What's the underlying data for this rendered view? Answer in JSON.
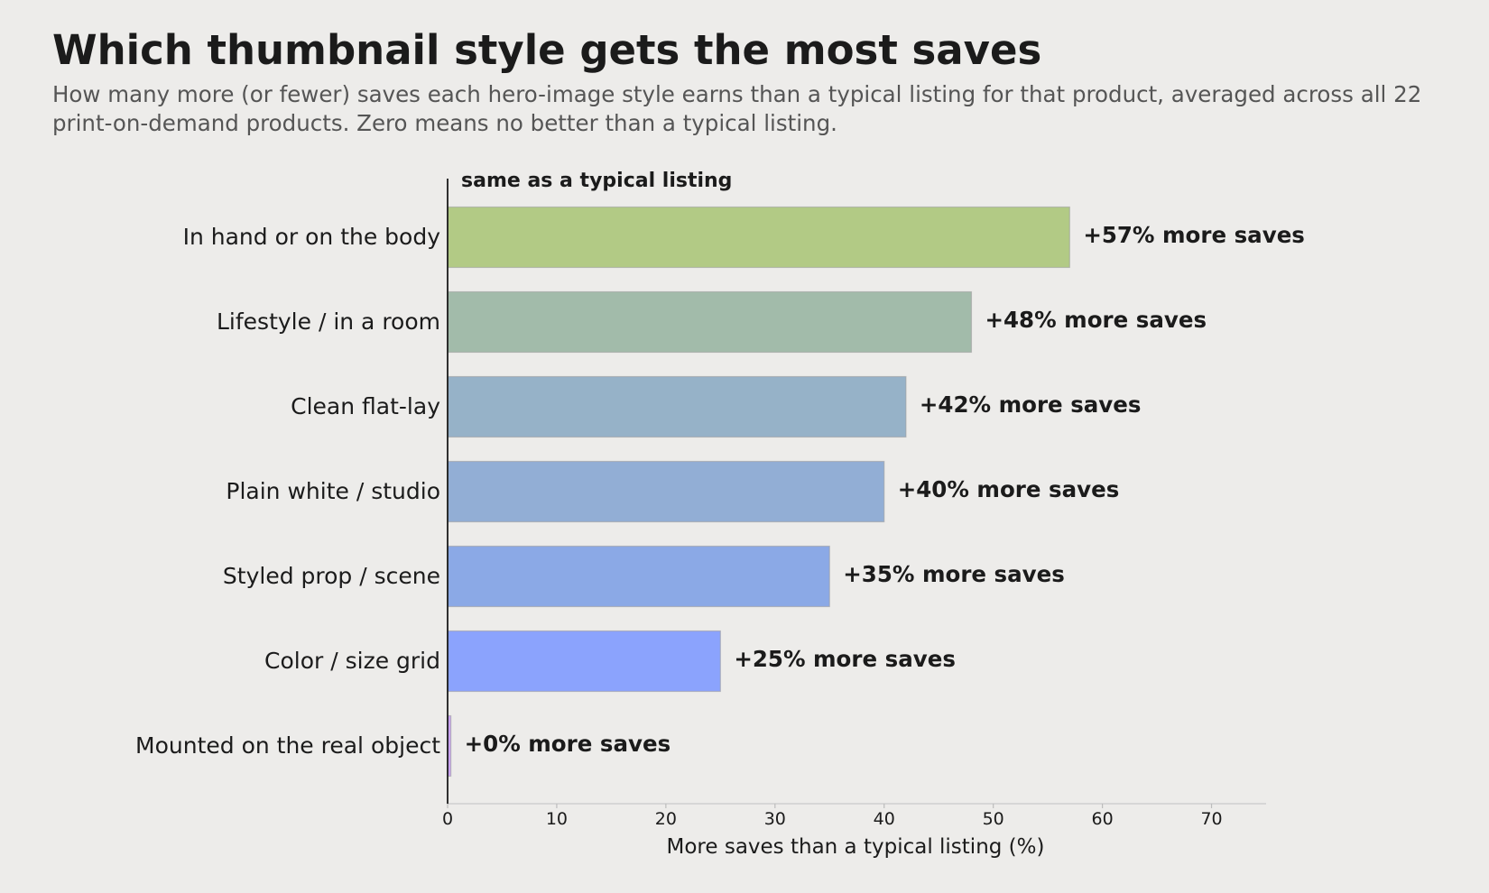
{
  "title": "Which thumbnail style gets the most saves",
  "subtitle": "How many more (or fewer) saves each hero-image style earns than a typical listing for that product, averaged across all 22 print-on-demand products. Zero means no better than a typical listing.",
  "chart_data": {
    "type": "bar",
    "orientation": "horizontal",
    "categories": [
      "In hand or on the body",
      "Lifestyle / in a room",
      "Clean flat-lay",
      "Plain white / studio",
      "Styled prop / scene",
      "Color / size grid",
      "Mounted on the real object"
    ],
    "values": [
      57,
      48,
      42,
      40,
      35,
      25,
      0.3
    ],
    "value_labels": [
      "+57% more saves",
      "+48% more saves",
      "+42% more saves",
      "+40% more saves",
      "+35% more saves",
      "+25% more saves",
      "+0% more saves"
    ],
    "colors": [
      "#b2ca85",
      "#a2bbaa",
      "#96b2c8",
      "#92aed5",
      "#8ba9e6",
      "#8ba3fd",
      "#c9a3f5"
    ],
    "xlabel": "More saves than a typical listing (%)",
    "xlim": [
      0,
      75
    ],
    "xticks": [
      0,
      10,
      20,
      30,
      40,
      50,
      60,
      70
    ],
    "zero_line_label": "same as a typical listing",
    "grid": false,
    "legend": "none"
  }
}
